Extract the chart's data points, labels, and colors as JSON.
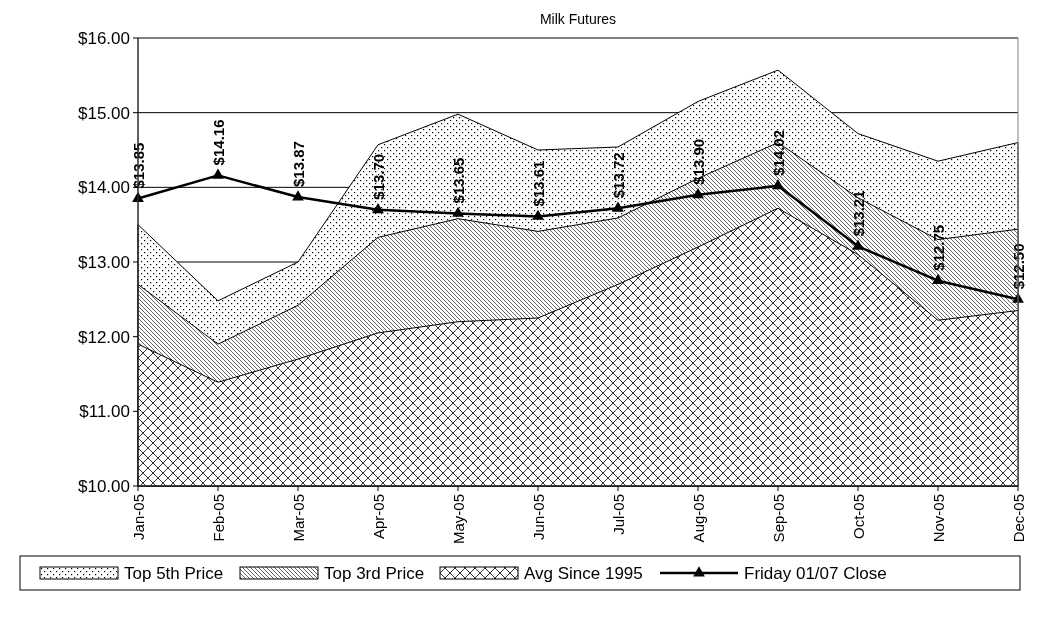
{
  "chart_data": {
    "type": "area",
    "title": "Milk Futures",
    "categories": [
      "Jan-05",
      "Feb-05",
      "Mar-05",
      "Apr-05",
      "May-05",
      "Jun-05",
      "Jul-05",
      "Aug-05",
      "Sep-05",
      "Oct-05",
      "Nov-05",
      "Dec-05"
    ],
    "series": [
      {
        "name": "Top 5th Price",
        "color": "#000000",
        "values": [
          13.5,
          12.48,
          13.0,
          14.57,
          14.98,
          14.5,
          14.54,
          15.15,
          15.57,
          14.72,
          14.35,
          14.6
        ]
      },
      {
        "name": "Top 3rd Price",
        "color": "#000000",
        "values": [
          12.7,
          11.9,
          12.42,
          13.33,
          13.58,
          13.41,
          13.59,
          14.12,
          14.6,
          13.86,
          13.3,
          13.44
        ]
      },
      {
        "name": "Avg Since 1995",
        "color": "#000000",
        "values": [
          11.9,
          11.39,
          11.7,
          12.05,
          12.2,
          12.25,
          12.7,
          13.2,
          13.72,
          13.1,
          12.22,
          12.35
        ]
      },
      {
        "name": "Friday 01/07 Close",
        "type": "line",
        "marker": "triangle",
        "color": "#000000",
        "values": [
          13.85,
          14.16,
          13.87,
          13.7,
          13.65,
          13.61,
          13.72,
          13.9,
          14.02,
          13.21,
          12.75,
          12.5
        ],
        "value_labels": [
          "$13.85",
          "$14.16",
          "$13.87",
          "$13.70",
          "$13.65",
          "$13.61",
          "$13.72",
          "$13.90",
          "$14.02",
          "$13.21",
          "$12.75",
          "$12.50"
        ]
      }
    ],
    "ylim": [
      10,
      16
    ],
    "yticks": [
      {
        "value": 10,
        "label": "$10.00"
      },
      {
        "value": 11,
        "label": "$11.00"
      },
      {
        "value": 12,
        "label": "$12.00"
      },
      {
        "value": 13,
        "label": "$13.00"
      },
      {
        "value": 14,
        "label": "$14.00"
      },
      {
        "value": 15,
        "label": "$15.00"
      },
      {
        "value": 16,
        "label": "$16.00"
      }
    ],
    "grid": "y",
    "legend": "bottom"
  }
}
